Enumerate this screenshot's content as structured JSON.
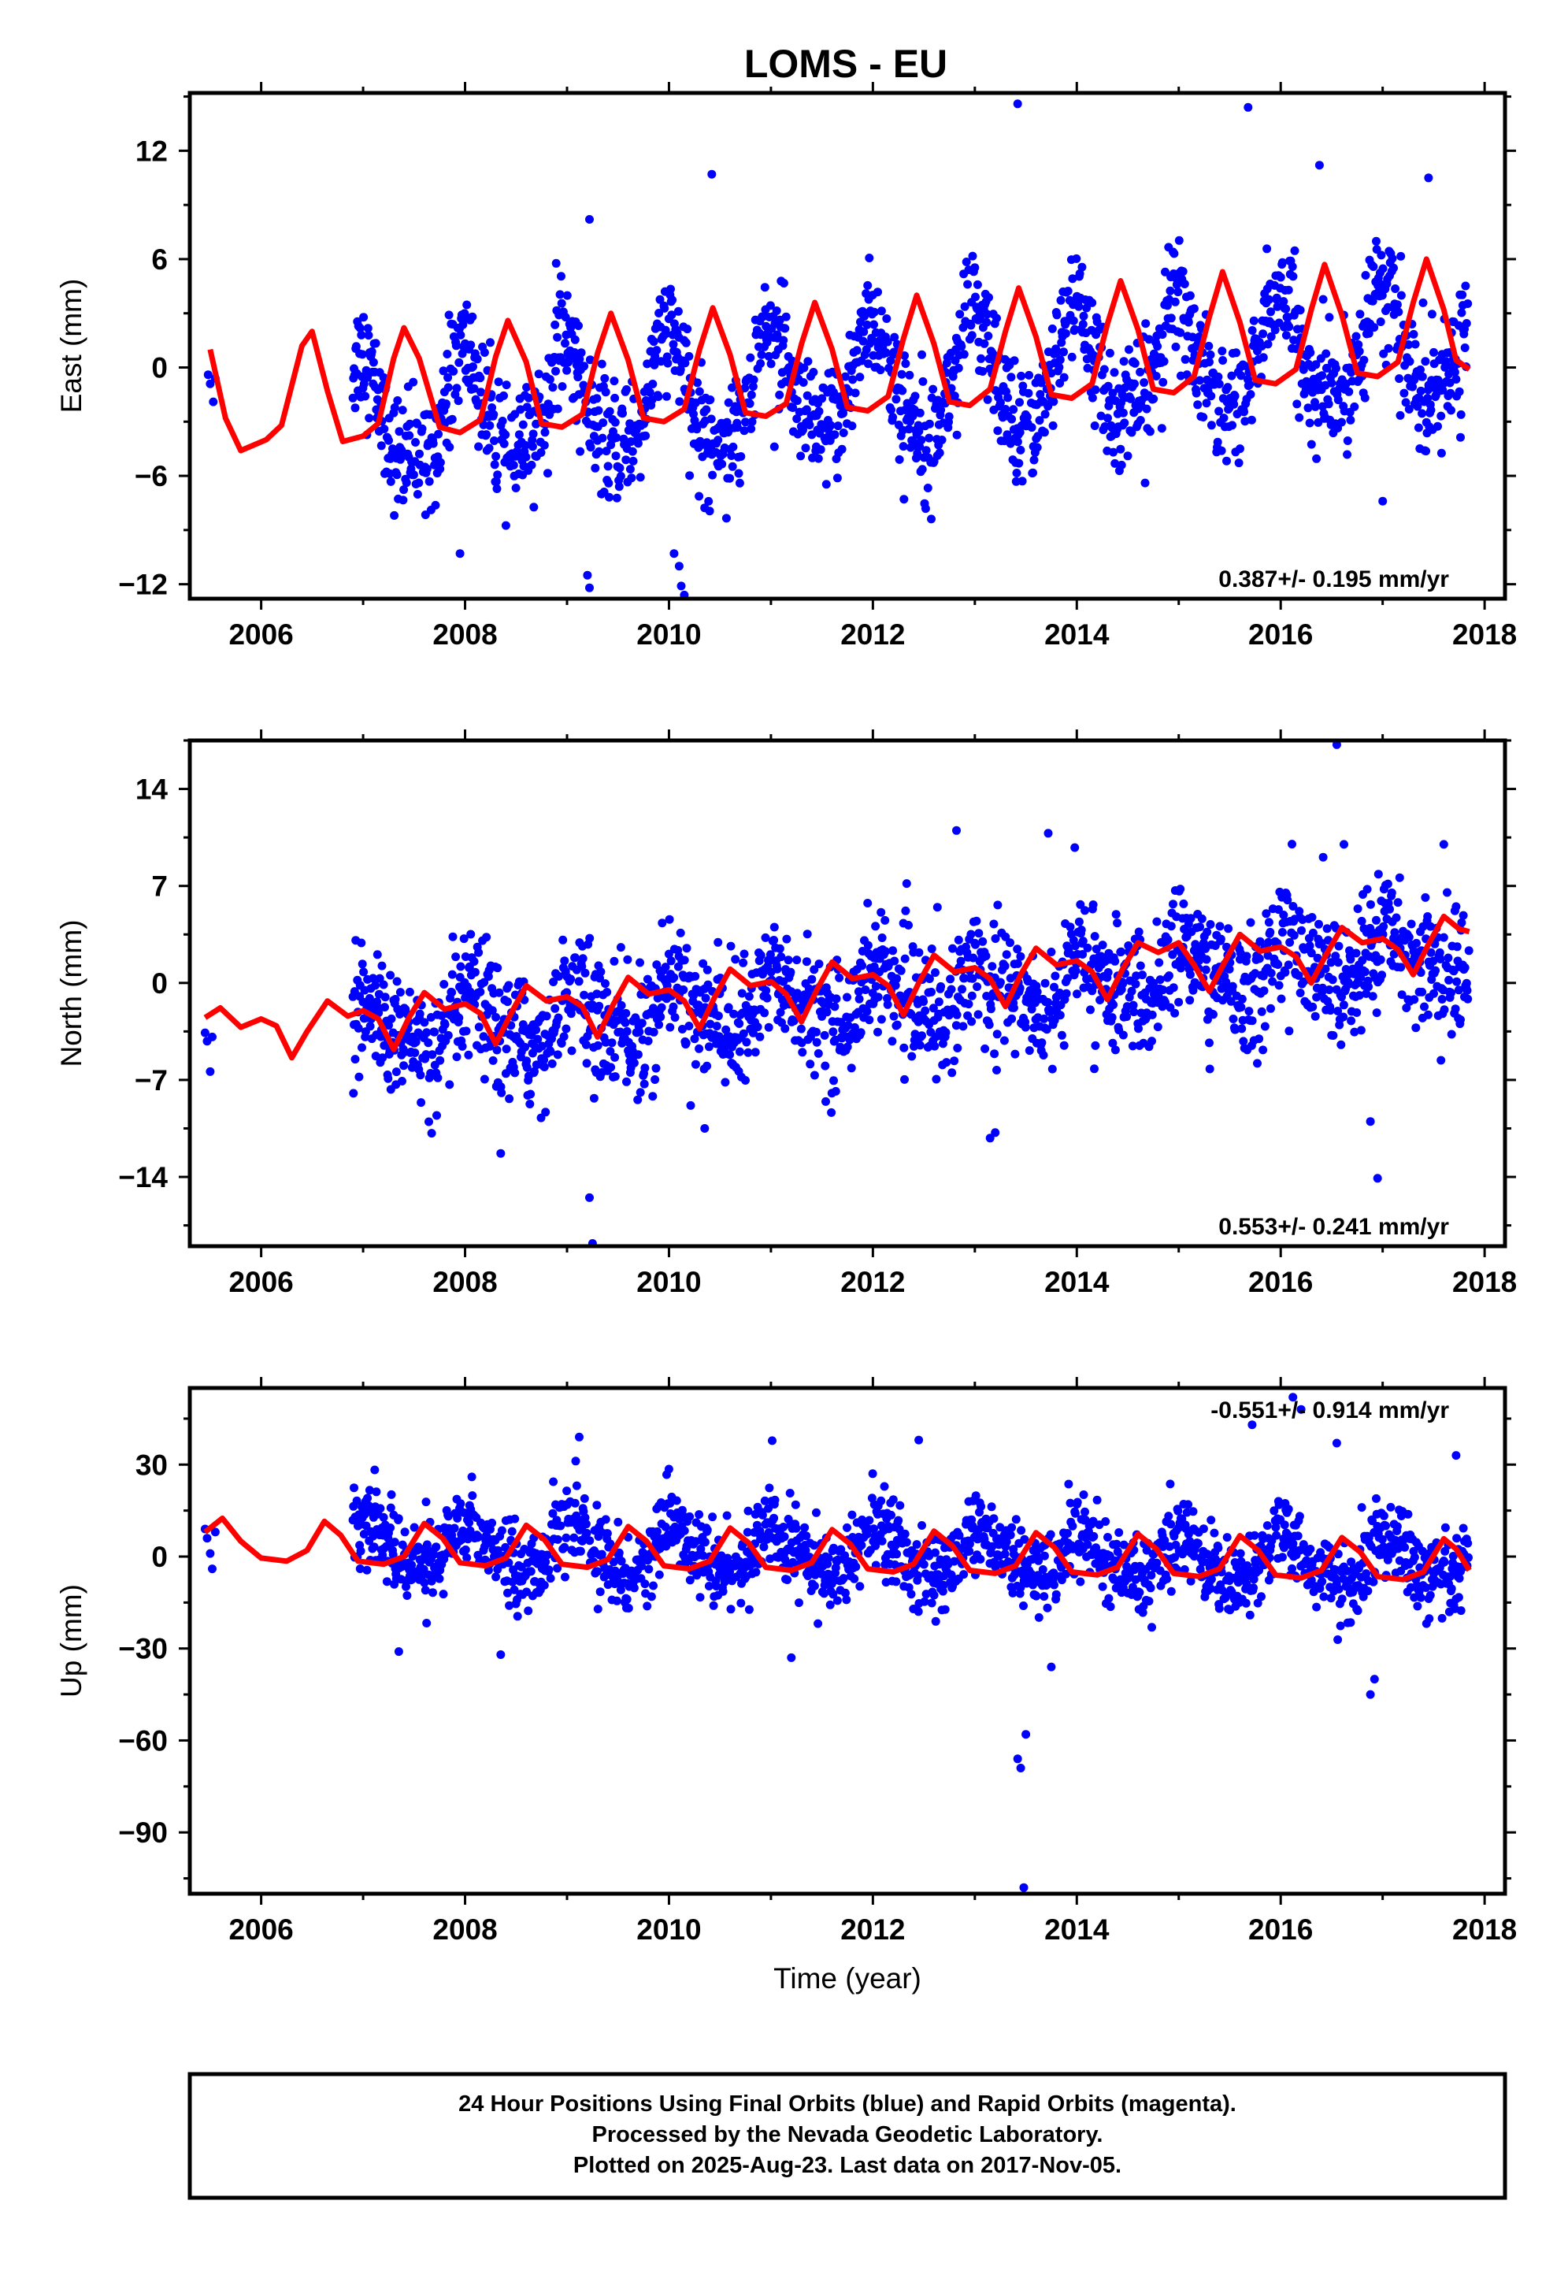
{
  "title": "LOMS - EU",
  "footer": {
    "line1": "24 Hour Positions Using Final Orbits (blue) and Rapid Orbits (magenta).",
    "line2": "Processed by the Nevada Geodetic Laboratory.",
    "line3": "Plotted on 2025-Aug-23. Last data on 2017-Nov-05."
  },
  "colors": {
    "data": "#0000ff",
    "model": "#ff0000",
    "frame": "#000000"
  },
  "chart_data": [
    {
      "type": "scatter",
      "ylabel": "East (mm)",
      "xlabel": "",
      "xlim": [
        2005.3,
        2018.2
      ],
      "ylim": [
        -12.8,
        15.2
      ],
      "xticks": [
        2006,
        2008,
        2010,
        2012,
        2014,
        2016,
        2018
      ],
      "yticks": [
        -12,
        -6,
        0,
        6,
        12
      ],
      "rate_label": "0.387+/- 0.195 mm/yr",
      "data_start": 2006.9,
      "data_end": 2017.85,
      "model": {
        "offset": -0.85,
        "annual_amp": 3.0,
        "annual_phase": 1.05,
        "semi_amp": 0.7,
        "semi_phase": 0.5
      },
      "scatter_sd": 1.6,
      "early_points": [
        [
          2005.48,
          -0.4
        ],
        [
          2005.5,
          -0.9
        ],
        [
          2005.53,
          -1.9
        ],
        [
          2005.55,
          -0.6
        ]
      ],
      "outliers": [
        [
          2013.42,
          14.6
        ],
        [
          2015.68,
          14.4
        ],
        [
          2010.42,
          10.7
        ],
        [
          2016.38,
          11.2
        ],
        [
          2009.22,
          8.2
        ],
        [
          2017.45,
          10.5
        ],
        [
          2009.2,
          -11.5
        ],
        [
          2009.22,
          -12.2
        ],
        [
          2010.1,
          -11.0
        ],
        [
          2010.12,
          -12.1
        ],
        [
          2010.15,
          -12.6
        ],
        [
          2010.05,
          -10.3
        ],
        [
          2007.95,
          -10.3
        ],
        [
          2017.0,
          -7.4
        ]
      ],
      "model_curve": [
        [
          2005.5,
          1.0
        ],
        [
          2005.65,
          -2.8
        ],
        [
          2005.8,
          -4.6
        ],
        [
          2006.05,
          -4.0
        ],
        [
          2006.2,
          -3.2
        ],
        [
          2006.4,
          1.2
        ],
        [
          2006.5,
          2.0
        ],
        [
          2006.65,
          -1.3
        ],
        [
          2006.8,
          -4.1
        ],
        [
          2007.0,
          -3.8
        ],
        [
          2007.15,
          -3.1
        ],
        [
          2007.3,
          0.5
        ],
        [
          2007.4,
          2.2
        ],
        [
          2007.55,
          0.5
        ],
        [
          2007.75,
          -3.3
        ],
        [
          2007.95,
          -3.6
        ],
        [
          2008.15,
          -2.9
        ],
        [
          2008.3,
          0.6
        ],
        [
          2008.42,
          2.6
        ],
        [
          2008.6,
          0.3
        ],
        [
          2008.75,
          -3.1
        ],
        [
          2008.95,
          -3.3
        ],
        [
          2009.15,
          -2.6
        ],
        [
          2009.3,
          0.8
        ],
        [
          2009.43,
          3.0
        ],
        [
          2009.6,
          0.4
        ],
        [
          2009.75,
          -2.8
        ],
        [
          2009.95,
          -3.0
        ],
        [
          2010.15,
          -2.3
        ],
        [
          2010.3,
          1.0
        ],
        [
          2010.43,
          3.3
        ],
        [
          2010.6,
          0.7
        ],
        [
          2010.75,
          -2.5
        ],
        [
          2010.95,
          -2.7
        ],
        [
          2011.15,
          -2.0
        ],
        [
          2011.3,
          1.3
        ],
        [
          2011.43,
          3.6
        ],
        [
          2011.6,
          1.0
        ],
        [
          2011.75,
          -2.2
        ],
        [
          2011.95,
          -2.4
        ],
        [
          2012.15,
          -1.6
        ],
        [
          2012.3,
          1.6
        ],
        [
          2012.43,
          4.0
        ],
        [
          2012.6,
          1.3
        ],
        [
          2012.75,
          -1.9
        ],
        [
          2012.95,
          -2.1
        ],
        [
          2013.15,
          -1.2
        ],
        [
          2013.3,
          2.0
        ],
        [
          2013.43,
          4.4
        ],
        [
          2013.6,
          1.7
        ],
        [
          2013.75,
          -1.5
        ],
        [
          2013.95,
          -1.7
        ],
        [
          2014.15,
          -0.9
        ],
        [
          2014.3,
          2.4
        ],
        [
          2014.43,
          4.8
        ],
        [
          2014.6,
          2.1
        ],
        [
          2014.75,
          -1.2
        ],
        [
          2014.95,
          -1.4
        ],
        [
          2015.15,
          -0.5
        ],
        [
          2015.3,
          2.8
        ],
        [
          2015.43,
          5.3
        ],
        [
          2015.6,
          2.5
        ],
        [
          2015.75,
          -0.7
        ],
        [
          2015.95,
          -0.9
        ],
        [
          2016.15,
          -0.1
        ],
        [
          2016.3,
          3.2
        ],
        [
          2016.43,
          5.7
        ],
        [
          2016.6,
          2.9
        ],
        [
          2016.75,
          -0.3
        ],
        [
          2016.95,
          -0.5
        ],
        [
          2017.15,
          0.3
        ],
        [
          2017.3,
          3.6
        ],
        [
          2017.43,
          6.0
        ],
        [
          2017.6,
          3.2
        ],
        [
          2017.72,
          0.4
        ],
        [
          2017.85,
          -0.1
        ]
      ]
    },
    {
      "type": "scatter",
      "ylabel": "North (mm)",
      "xlabel": "",
      "xlim": [
        2005.3,
        2018.2
      ],
      "ylim": [
        -19.0,
        17.5
      ],
      "xticks": [
        2006,
        2008,
        2010,
        2012,
        2014,
        2016,
        2018
      ],
      "yticks": [
        -14,
        -7,
        0,
        7,
        14
      ],
      "rate_label": "0.553+/- 0.241 mm/yr",
      "data_start": 2006.9,
      "data_end": 2017.85,
      "model": {
        "offset": -0.9,
        "annual_amp": 1.7,
        "annual_phase": 0.4,
        "semi_amp": 0.6,
        "semi_phase": 0.2
      },
      "scatter_sd": 2.2,
      "early_points": [
        [
          2005.45,
          -3.6
        ],
        [
          2005.47,
          -4.2
        ],
        [
          2005.5,
          -6.4
        ],
        [
          2005.52,
          -3.9
        ]
      ],
      "outliers": [
        [
          2016.55,
          17.2
        ],
        [
          2012.82,
          11.0
        ],
        [
          2013.72,
          10.8
        ],
        [
          2016.62,
          10.0
        ],
        [
          2017.6,
          10.0
        ],
        [
          2009.22,
          -15.5
        ],
        [
          2009.25,
          -18.8
        ],
        [
          2016.95,
          -14.1
        ],
        [
          2016.88,
          -10.0
        ],
        [
          2008.35,
          -12.3
        ],
        [
          2013.15,
          -11.2
        ],
        [
          2013.2,
          -10.8
        ],
        [
          2010.35,
          -10.5
        ]
      ],
      "model_curve": [
        [
          2005.45,
          -2.5
        ],
        [
          2005.6,
          -1.8
        ],
        [
          2005.8,
          -3.2
        ],
        [
          2006.0,
          -2.6
        ],
        [
          2006.15,
          -3.1
        ],
        [
          2006.3,
          -5.4
        ],
        [
          2006.45,
          -3.5
        ],
        [
          2006.65,
          -1.3
        ],
        [
          2006.85,
          -2.4
        ],
        [
          2007.0,
          -2.0
        ],
        [
          2007.15,
          -2.6
        ],
        [
          2007.3,
          -4.8
        ],
        [
          2007.45,
          -2.5
        ],
        [
          2007.6,
          -0.7
        ],
        [
          2007.8,
          -1.9
        ],
        [
          2008.0,
          -1.5
        ],
        [
          2008.15,
          -2.2
        ],
        [
          2008.3,
          -4.4
        ],
        [
          2008.45,
          -2.2
        ],
        [
          2008.6,
          -0.2
        ],
        [
          2008.8,
          -1.3
        ],
        [
          2009.0,
          -1.0
        ],
        [
          2009.15,
          -1.7
        ],
        [
          2009.3,
          -3.9
        ],
        [
          2009.45,
          -1.6
        ],
        [
          2009.6,
          0.4
        ],
        [
          2009.8,
          -0.8
        ],
        [
          2010.0,
          -0.5
        ],
        [
          2010.15,
          -1.3
        ],
        [
          2010.3,
          -3.3
        ],
        [
          2010.45,
          -1.0
        ],
        [
          2010.6,
          1.0
        ],
        [
          2010.8,
          -0.2
        ],
        [
          2011.0,
          0.1
        ],
        [
          2011.15,
          -0.8
        ],
        [
          2011.3,
          -2.8
        ],
        [
          2011.45,
          -0.5
        ],
        [
          2011.6,
          1.5
        ],
        [
          2011.8,
          0.3
        ],
        [
          2012.0,
          0.6
        ],
        [
          2012.15,
          -0.2
        ],
        [
          2012.3,
          -2.3
        ],
        [
          2012.45,
          0.0
        ],
        [
          2012.6,
          2.0
        ],
        [
          2012.8,
          0.8
        ],
        [
          2013.0,
          1.1
        ],
        [
          2013.15,
          0.3
        ],
        [
          2013.3,
          -1.7
        ],
        [
          2013.45,
          0.6
        ],
        [
          2013.6,
          2.5
        ],
        [
          2013.8,
          1.3
        ],
        [
          2014.0,
          1.6
        ],
        [
          2014.15,
          0.8
        ],
        [
          2014.3,
          -1.2
        ],
        [
          2014.45,
          1.0
        ],
        [
          2014.6,
          2.9
        ],
        [
          2014.8,
          2.2
        ],
        [
          2015.0,
          2.9
        ],
        [
          2015.15,
          1.3
        ],
        [
          2015.3,
          -0.6
        ],
        [
          2015.45,
          1.5
        ],
        [
          2015.6,
          3.5
        ],
        [
          2015.8,
          2.3
        ],
        [
          2016.0,
          2.6
        ],
        [
          2016.15,
          1.9
        ],
        [
          2016.3,
          0.0
        ],
        [
          2016.45,
          2.1
        ],
        [
          2016.6,
          4.0
        ],
        [
          2016.8,
          2.9
        ],
        [
          2017.0,
          3.2
        ],
        [
          2017.15,
          2.4
        ],
        [
          2017.3,
          0.6
        ],
        [
          2017.45,
          2.8
        ],
        [
          2017.6,
          4.8
        ],
        [
          2017.75,
          3.9
        ],
        [
          2017.85,
          3.7
        ]
      ]
    },
    {
      "type": "scatter",
      "ylabel": "Up (mm)",
      "xlabel": "Time (year)",
      "xlim": [
        2005.3,
        2018.2
      ],
      "ylim": [
        -110,
        55
      ],
      "xticks": [
        2006,
        2008,
        2010,
        2012,
        2014,
        2016,
        2018
      ],
      "yticks": [
        -90,
        -60,
        -30,
        0,
        30
      ],
      "rate_label": "-0.551+/- 0.914 mm/yr",
      "data_start": 2006.9,
      "data_end": 2017.85,
      "model": {
        "offset": 0.5,
        "annual_amp": 7.5,
        "annual_phase": 0.6,
        "semi_amp": 1.5,
        "semi_phase": 0.3
      },
      "scatter_sd": 6.5,
      "early_points": [
        [
          2005.45,
          9.0
        ],
        [
          2005.47,
          6.0
        ],
        [
          2005.5,
          1.0
        ],
        [
          2005.52,
          -4.0
        ],
        [
          2005.55,
          8.0
        ]
      ],
      "outliers": [
        [
          2013.48,
          -108
        ],
        [
          2013.42,
          -66
        ],
        [
          2013.45,
          -69
        ],
        [
          2013.5,
          -58
        ],
        [
          2013.75,
          -36
        ],
        [
          2016.12,
          52
        ],
        [
          2016.2,
          48
        ],
        [
          2016.55,
          37
        ],
        [
          2015.72,
          43
        ],
        [
          2009.12,
          39
        ],
        [
          2012.45,
          38
        ],
        [
          2017.72,
          33
        ],
        [
          2016.88,
          -45
        ],
        [
          2016.92,
          -40
        ],
        [
          2008.35,
          -32
        ],
        [
          2011.2,
          -33
        ],
        [
          2007.35,
          -31
        ]
      ],
      "model_curve": [
        [
          2005.45,
          8.0
        ],
        [
          2005.62,
          12.5
        ],
        [
          2005.8,
          5.0
        ],
        [
          2006.0,
          -0.5
        ],
        [
          2006.25,
          -1.5
        ],
        [
          2006.45,
          2.0
        ],
        [
          2006.62,
          11.5
        ],
        [
          2006.78,
          7.0
        ],
        [
          2006.95,
          -1.5
        ],
        [
          2007.2,
          -2.5
        ],
        [
          2007.4,
          0.0
        ],
        [
          2007.6,
          10.8
        ],
        [
          2007.78,
          6.0
        ],
        [
          2007.95,
          -2.0
        ],
        [
          2008.2,
          -3.0
        ],
        [
          2008.4,
          -0.5
        ],
        [
          2008.6,
          10.2
        ],
        [
          2008.78,
          5.5
        ],
        [
          2008.95,
          -2.5
        ],
        [
          2009.2,
          -3.5
        ],
        [
          2009.4,
          -1.0
        ],
        [
          2009.6,
          9.8
        ],
        [
          2009.78,
          5.0
        ],
        [
          2009.95,
          -3.0
        ],
        [
          2010.2,
          -4.0
        ],
        [
          2010.4,
          -1.5
        ],
        [
          2010.6,
          9.3
        ],
        [
          2010.78,
          4.5
        ],
        [
          2010.95,
          -3.5
        ],
        [
          2011.2,
          -4.5
        ],
        [
          2011.4,
          -2.0
        ],
        [
          2011.6,
          8.8
        ],
        [
          2011.78,
          4.0
        ],
        [
          2011.95,
          -4.0
        ],
        [
          2012.2,
          -5.0
        ],
        [
          2012.4,
          -2.5
        ],
        [
          2012.6,
          8.3
        ],
        [
          2012.78,
          3.5
        ],
        [
          2012.95,
          -4.5
        ],
        [
          2013.2,
          -5.5
        ],
        [
          2013.4,
          -3.0
        ],
        [
          2013.6,
          7.8
        ],
        [
          2013.78,
          3.0
        ],
        [
          2013.95,
          -5.0
        ],
        [
          2014.2,
          -6.0
        ],
        [
          2014.4,
          -3.5
        ],
        [
          2014.6,
          7.3
        ],
        [
          2014.78,
          2.5
        ],
        [
          2014.95,
          -5.5
        ],
        [
          2015.2,
          -6.5
        ],
        [
          2015.4,
          -4.0
        ],
        [
          2015.6,
          6.8
        ],
        [
          2015.78,
          2.0
        ],
        [
          2015.95,
          -6.0
        ],
        [
          2016.2,
          -7.0
        ],
        [
          2016.4,
          -4.5
        ],
        [
          2016.6,
          6.2
        ],
        [
          2016.78,
          1.5
        ],
        [
          2016.95,
          -6.5
        ],
        [
          2017.2,
          -7.5
        ],
        [
          2017.4,
          -5.0
        ],
        [
          2017.6,
          5.8
        ],
        [
          2017.72,
          2.5
        ],
        [
          2017.85,
          -4.5
        ]
      ]
    }
  ]
}
